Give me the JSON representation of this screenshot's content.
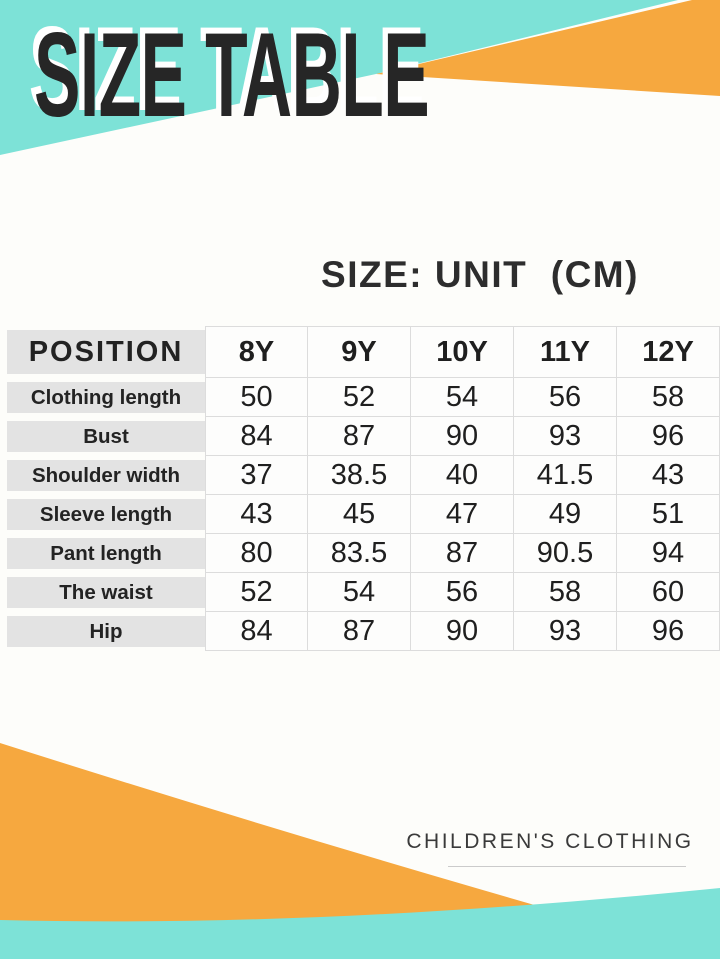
{
  "colors": {
    "teal": "#7de2d7",
    "orange": "#f6a83f",
    "title_ink": "#262626",
    "label_bg": "#e3e3e3",
    "grid_line": "#dcdcdc",
    "footer_ink": "#3a3a3a"
  },
  "header": {
    "title": "SIZE TABLE"
  },
  "size_note": {
    "text": "SIZE: UNIT  (CM)"
  },
  "footer": {
    "brand": "CHILDREN'S CLOTHING"
  },
  "chart_data": {
    "type": "table",
    "title": "SIZE TABLE",
    "subtitle": "SIZE: UNIT (CM)",
    "columns": [
      "POSITION",
      "8Y",
      "9Y",
      "10Y",
      "11Y",
      "12Y"
    ],
    "rows": [
      [
        "Clothing length",
        50,
        52,
        54,
        56,
        58
      ],
      [
        "Bust",
        84,
        87,
        90,
        93,
        96
      ],
      [
        "Shoulder width",
        37,
        38.5,
        40,
        41.5,
        43
      ],
      [
        "Sleeve length",
        43,
        45,
        47,
        49,
        51
      ],
      [
        "Pant length",
        80,
        83.5,
        87,
        90.5,
        94
      ],
      [
        "The waist",
        52,
        54,
        56,
        58,
        60
      ],
      [
        "Hip",
        84,
        87,
        90,
        93,
        96
      ]
    ]
  }
}
